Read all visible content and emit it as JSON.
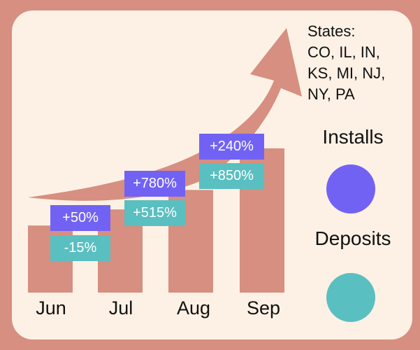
{
  "chart_data": {
    "type": "bar",
    "categories": [
      "Jun",
      "Jul",
      "Aug",
      "Sep"
    ],
    "values": [
      100,
      124,
      153,
      215
    ],
    "annotations": {
      "installs": [
        "+50%",
        "+780%",
        "+240%",
        ""
      ],
      "deposits": [
        "-15%",
        "+515%",
        "+850%",
        ""
      ]
    },
    "ylim": [
      0,
      240
    ],
    "trend": "upward-arrow"
  },
  "states": {
    "label": "States:",
    "lines": [
      "CO, IL, IN,",
      "KS, MI, NJ,",
      "NY, PA"
    ]
  },
  "legend": {
    "installs": {
      "label": "Installs",
      "color": "#7262f4"
    },
    "deposits": {
      "label": "Deposits",
      "color": "#5abfc1"
    }
  },
  "colors": {
    "background": "#d68f80",
    "panel": "#fdf1e5",
    "bar": "#d68f80"
  }
}
